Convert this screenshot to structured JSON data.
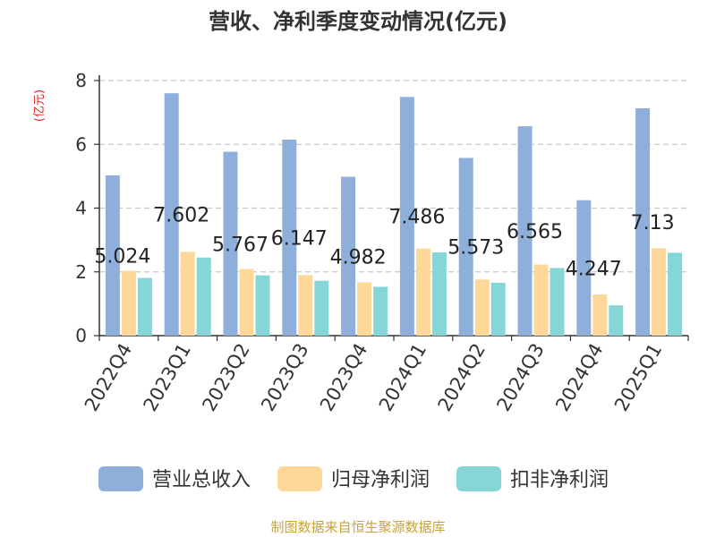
{
  "chart_data": {
    "type": "bar",
    "title": "营收、净利季度变动情况(亿元)",
    "ylabel": "(亿元)",
    "xlabel": "",
    "ylim": [
      0,
      8
    ],
    "yticks": [
      "0",
      "2",
      "4",
      "6",
      "8"
    ],
    "grid": true,
    "legend_position": "bottom",
    "categories": [
      "2022Q4",
      "2023Q1",
      "2023Q2",
      "2023Q3",
      "2023Q4",
      "2024Q1",
      "2024Q2",
      "2024Q3",
      "2024Q4",
      "2025Q1"
    ],
    "series": [
      {
        "name": "营业总收入",
        "color": "#8fafdb",
        "values": [
          5.024,
          7.602,
          5.767,
          6.147,
          4.982,
          7.486,
          5.573,
          6.565,
          4.247,
          7.13
        ],
        "labels": [
          "5.024",
          "7.602",
          "5.767",
          "6.147",
          "4.982",
          "7.486",
          "5.573",
          "6.565",
          "4.247",
          "7.13"
        ]
      },
      {
        "name": "归母净利润",
        "color": "#fdd899",
        "values": [
          2.03,
          2.63,
          2.09,
          1.9,
          1.67,
          2.73,
          1.76,
          2.23,
          1.29,
          2.74
        ]
      },
      {
        "name": "扣非净利润",
        "color": "#86d6d8",
        "values": [
          1.81,
          2.45,
          1.89,
          1.72,
          1.53,
          2.61,
          1.66,
          2.12,
          0.95,
          2.6
        ]
      }
    ]
  },
  "footer": {
    "source": "制图数据来自恒生聚源数据库"
  }
}
